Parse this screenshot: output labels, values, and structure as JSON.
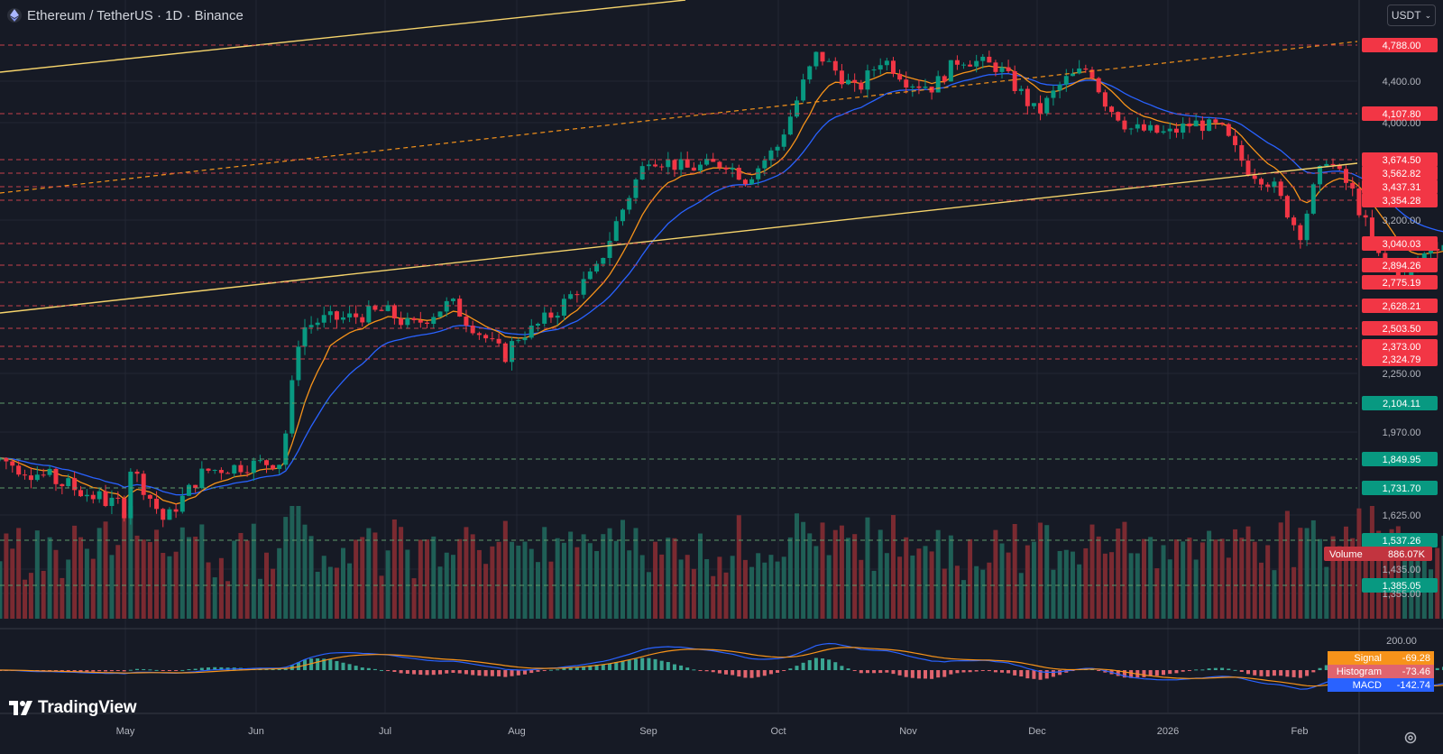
{
  "header": {
    "symbol": "Ethereum / TetherUS · 1D · Binance",
    "currency": "USDT"
  },
  "branding": {
    "name": "TradingView"
  },
  "colors": {
    "background": "#161a25",
    "grid": "#232733",
    "up": "#089981",
    "down": "#f23645",
    "ema_fast": "#f7931a",
    "ema_slow": "#2962ff",
    "trendline": "#f5d36b",
    "volume_up": "#1f5f56",
    "volume_down": "#7a2a31"
  },
  "chart_data": {
    "type": "candlestick",
    "title": "Ethereum / TetherUS · 1D · Binance",
    "x_ticks": [
      "May",
      "Jun",
      "Jul",
      "Aug",
      "Sep",
      "Oct",
      "Nov",
      "Dec",
      "2026",
      "Feb"
    ],
    "y_axis_labels": [
      "4,400.00",
      "4,000.00",
      "3,200.00",
      "2,250.00",
      "1,970.00",
      "1,625.00",
      "1,435.00",
      "1,355.00"
    ],
    "price_levels": [
      {
        "label": "4,788.00",
        "color": "red"
      },
      {
        "label": "4,107.80",
        "color": "red"
      },
      {
        "label": "3,674.50",
        "color": "red"
      },
      {
        "label": "3,562.82",
        "color": "red"
      },
      {
        "label": "3,437.31",
        "color": "red"
      },
      {
        "label": "3,354.28",
        "color": "red"
      },
      {
        "label": "3,040.03",
        "color": "red"
      },
      {
        "label": "2,894.26",
        "color": "red"
      },
      {
        "label": "2,775.19",
        "color": "red"
      },
      {
        "label": "2,628.21",
        "color": "red"
      },
      {
        "label": "2,503.50",
        "color": "red"
      },
      {
        "label": "2,373.00",
        "color": "red"
      },
      {
        "label": "2,324.79",
        "color": "red"
      },
      {
        "label": "2,104.11",
        "color": "green"
      },
      {
        "label": "1,849.95",
        "color": "green"
      },
      {
        "label": "1,731.70",
        "color": "green"
      },
      {
        "label": "1,537.26",
        "color": "green"
      },
      {
        "label": "1,385.05",
        "color": "green"
      }
    ],
    "close_path": [
      [
        1.0,
        1850
      ],
      [
        1.3,
        1600
      ],
      [
        1.6,
        1800
      ],
      [
        2.0,
        1830
      ],
      [
        2.2,
        1840
      ],
      [
        2.35,
        2500
      ],
      [
        2.5,
        2550
      ],
      [
        2.7,
        2560
      ],
      [
        3.0,
        2600
      ],
      [
        3.2,
        2510
      ],
      [
        3.5,
        2650
      ],
      [
        3.7,
        2480
      ],
      [
        3.9,
        2330
      ],
      [
        4.0,
        2430
      ],
      [
        4.3,
        2600
      ],
      [
        4.6,
        2850
      ],
      [
        5.0,
        3700
      ],
      [
        5.3,
        3600
      ],
      [
        5.6,
        3650
      ],
      [
        5.75,
        3500
      ],
      [
        6.0,
        3800
      ],
      [
        6.3,
        4700
      ],
      [
        6.6,
        4300
      ],
      [
        6.8,
        4650
      ],
      [
        7.0,
        4400
      ],
      [
        7.2,
        4350
      ],
      [
        7.4,
        4650
      ],
      [
        7.7,
        4550
      ],
      [
        8.0,
        4100
      ],
      [
        8.2,
        4400
      ],
      [
        8.4,
        4550
      ],
      [
        8.5,
        4250
      ],
      [
        8.7,
        3950
      ],
      [
        9.0,
        3900
      ],
      [
        9.2,
        4000
      ],
      [
        9.4,
        3950
      ],
      [
        9.6,
        3600
      ],
      [
        9.8,
        3450
      ],
      [
        10.0,
        3100
      ],
      [
        10.2,
        3700
      ],
      [
        10.4,
        3400
      ],
      [
        10.6,
        2950
      ],
      [
        10.8,
        2790
      ],
      [
        11.0,
        3030
      ],
      [
        11.2,
        3050
      ],
      [
        11.35,
        3100
      ],
      [
        11.6,
        3200
      ],
      [
        11.8,
        2950
      ],
      [
        12.0,
        2950
      ],
      [
        12.2,
        3080
      ],
      [
        12.4,
        3150
      ],
      [
        12.6,
        3300
      ],
      [
        12.8,
        3300
      ],
      [
        13.0,
        3280
      ],
      [
        13.2,
        3100
      ],
      [
        13.4,
        2840
      ],
      [
        13.5,
        2800
      ],
      [
        13.6,
        3000
      ],
      [
        13.7,
        2650
      ],
      [
        13.8,
        2400
      ]
    ],
    "volume_label": "Volume",
    "volume_value": "886.07K",
    "macd": {
      "axis_label": "200.00",
      "signal_label": "Signal",
      "signal_value": "-69.28",
      "histogram_label": "Histogram",
      "histogram_value": "-73.46",
      "macd_label": "MACD",
      "macd_value": "-142.74"
    }
  }
}
